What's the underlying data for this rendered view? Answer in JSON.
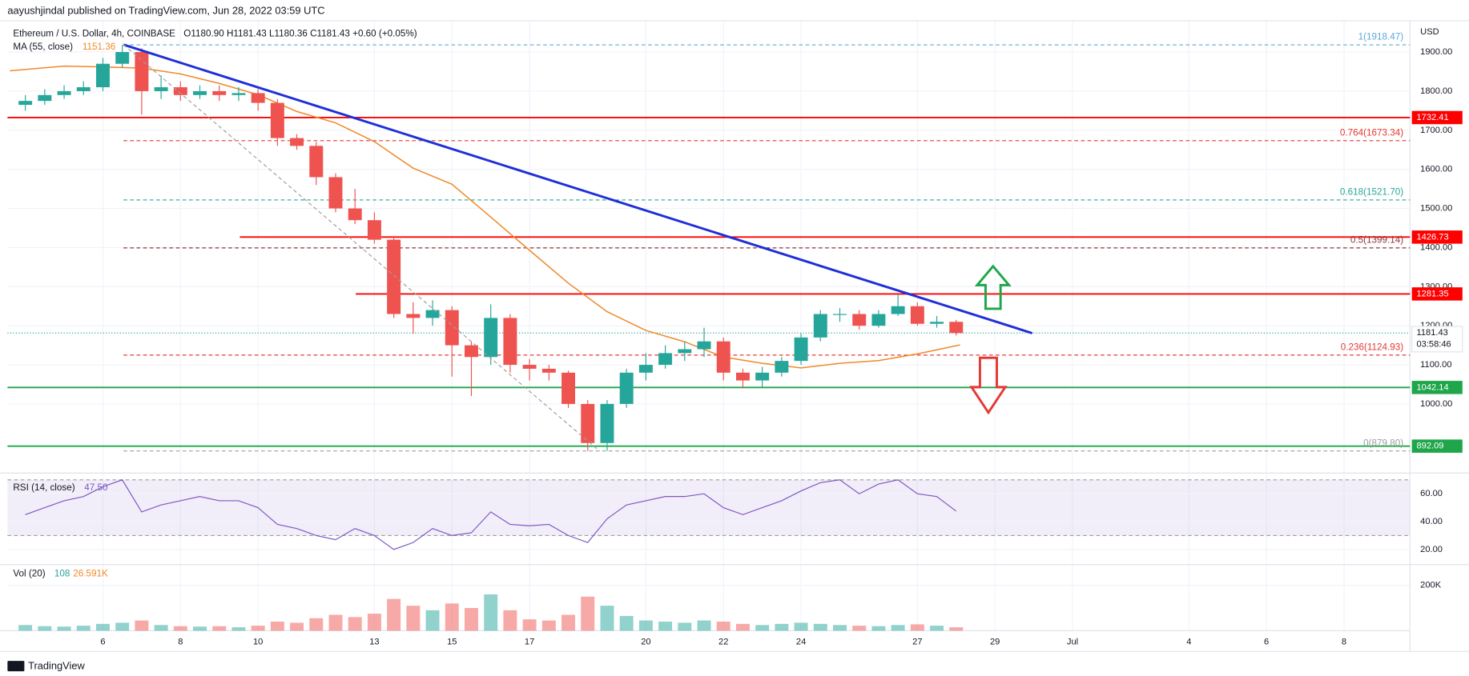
{
  "header": "aayushjindal published on TradingView.com, Jun 28, 2022 03:59 UTC",
  "footer": "TradingView",
  "chart_data": {
    "type": "candlestick",
    "symbol": "Ethereum / U.S. Dollar, 4h, COINBASE",
    "ohlc_text": "O1180.90 H1181.43 L1180.36 C1181.43 +0.60 (+0.05%)",
    "currency": "USD",
    "xlim": [
      3.54,
      39.7
    ],
    "xticks": [
      6,
      8,
      10,
      13,
      15,
      17,
      20,
      22,
      24,
      27,
      29,
      {
        "value": 31,
        "label": "Jul"
      },
      {
        "value": 34,
        "label": "4"
      },
      {
        "value": 36,
        "label": "6"
      },
      {
        "value": 38,
        "label": "8"
      }
    ],
    "ylim": [
      833,
      1980
    ],
    "yticks": [
      {
        "value": 1000,
        "label": "1000.00"
      },
      {
        "value": 1100,
        "label": "1100.00"
      },
      {
        "value": 1200,
        "label": "1200.00"
      },
      {
        "value": 1300,
        "label": "1300.00"
      },
      {
        "value": 1400,
        "label": "1400.00"
      },
      {
        "value": 1500,
        "label": "1500.00"
      },
      {
        "value": 1600,
        "label": "1600.00"
      },
      {
        "value": 1700,
        "label": "1700.00"
      },
      {
        "value": 1800,
        "label": "1800.00"
      },
      {
        "value": 1900,
        "label": "1900.00"
      }
    ],
    "grid": true,
    "up_color": "#26a69a",
    "down_color": "#ef5350",
    "candles": {
      "x": [
        4,
        4.5,
        5,
        5.5,
        6,
        6.5,
        7,
        7.5,
        8,
        8.5,
        9,
        9.5,
        10,
        10.5,
        11,
        11.5,
        12,
        12.5,
        13,
        13.5,
        14,
        14.5,
        15,
        15.5,
        16,
        16.5,
        17,
        17.5,
        18,
        18.5,
        19,
        19.5,
        20,
        20.5,
        21,
        21.5,
        22,
        22.5,
        23,
        23.5,
        24,
        24.5,
        25,
        25.5,
        26,
        26.5,
        27,
        27.5,
        28
      ],
      "open": [
        1765,
        1775,
        1790,
        1800,
        1810,
        1870,
        1900,
        1800,
        1810,
        1790,
        1800,
        1790,
        1795,
        1770,
        1680,
        1660,
        1580,
        1500,
        1470,
        1420,
        1230,
        1220,
        1240,
        1150,
        1120,
        1220,
        1100,
        1090,
        1080,
        1000,
        900,
        1000,
        1080,
        1100,
        1130,
        1140,
        1160,
        1080,
        1060,
        1080,
        1110,
        1170,
        1230,
        1230,
        1200,
        1230,
        1250,
        1205,
        1210
      ],
      "high": [
        1790,
        1805,
        1815,
        1825,
        1885,
        1918.47,
        1910,
        1840,
        1825,
        1815,
        1815,
        1810,
        1805,
        1780,
        1690,
        1670,
        1590,
        1550,
        1490,
        1430,
        1260,
        1265,
        1250,
        1160,
        1255,
        1230,
        1115,
        1100,
        1085,
        1010,
        1010,
        1090,
        1130,
        1150,
        1160,
        1195,
        1170,
        1090,
        1095,
        1120,
        1180,
        1240,
        1245,
        1240,
        1240,
        1280,
        1260,
        1225,
        1215
      ],
      "low": [
        1750,
        1765,
        1780,
        1790,
        1800,
        1860,
        1740,
        1780,
        1775,
        1780,
        1775,
        1775,
        1750,
        1660,
        1650,
        1560,
        1490,
        1460,
        1410,
        1220,
        1180,
        1200,
        1070,
        1020,
        1100,
        1080,
        1060,
        1060,
        990,
        880,
        879.8,
        990,
        1060,
        1090,
        1110,
        1120,
        1060,
        1040,
        1040,
        1070,
        1100,
        1160,
        1210,
        1190,
        1195,
        1225,
        1200,
        1195,
        1175
      ],
      "close": [
        1775,
        1790,
        1800,
        1810,
        1870,
        1900,
        1800,
        1810,
        1790,
        1800,
        1790,
        1795,
        1770,
        1680,
        1660,
        1580,
        1500,
        1470,
        1420,
        1230,
        1220,
        1240,
        1150,
        1120,
        1220,
        1100,
        1090,
        1080,
        1000,
        900,
        1000,
        1080,
        1100,
        1130,
        1140,
        1160,
        1080,
        1060,
        1080,
        1110,
        1170,
        1230,
        1230,
        1200,
        1230,
        1250,
        1205,
        1210,
        1181.43
      ]
    },
    "ma": {
      "name": "MA (55, close)",
      "last": "1151.36",
      "color": "#f0892a",
      "x": [
        3.6,
        5,
        6,
        7,
        8,
        9,
        10,
        11,
        12,
        13,
        14,
        15,
        16,
        17,
        18,
        19,
        20,
        21,
        22,
        23,
        24,
        25,
        26,
        27,
        28.1
      ],
      "values": [
        1852,
        1864,
        1862,
        1859,
        1844,
        1820,
        1791,
        1748,
        1719,
        1671,
        1603,
        1562,
        1478,
        1393,
        1309,
        1236,
        1188,
        1159,
        1120,
        1104,
        1092,
        1104,
        1111,
        1128,
        1151
      ]
    },
    "fib_levels": [
      {
        "label": "1(1918.47)",
        "value": 1918.47,
        "color": "#5fa8d8"
      },
      {
        "label": "0.764(1673.34)",
        "value": 1673.34,
        "color": "#e53935"
      },
      {
        "label": "0.618(1521.70)",
        "value": 1521.7,
        "color": "#26a69a"
      },
      {
        "label": "0.5(1399.14)",
        "value": 1399.14,
        "color": "#8d3a3a"
      },
      {
        "label": "0.236(1124.93)",
        "value": 1124.93,
        "color": "#e53935"
      },
      {
        "label": "0(879.80)",
        "value": 879.8,
        "color": "#9e9e9e"
      }
    ],
    "fib_from": 6.53,
    "levels": [
      {
        "value": 1732.41,
        "color": "#ff0000",
        "from": 3.54
      },
      {
        "value": 1426.73,
        "color": "#ff0000",
        "from": 9.53
      },
      {
        "value": 1281.35,
        "color": "#ff0000",
        "from": 12.52
      },
      {
        "value": 1042.14,
        "color": "#1fa64a",
        "from": 3.54
      },
      {
        "value": 892.09,
        "color": "#1fa64a",
        "from": 3.54
      }
    ],
    "last_price": 1181.43,
    "countdown": "03:58:46",
    "trendlines": [
      {
        "color": "#1f2fd6",
        "x": [
          6.53,
          29.96
        ],
        "values": [
          1919,
          1181
        ]
      },
      {
        "color": "#9e9e9e",
        "x": [
          6.53,
          18.8
        ],
        "values": [
          1919,
          879.8
        ]
      }
    ],
    "rsi": {
      "name": "RSI (14, close)",
      "last": "47.50",
      "color": "#7e57c2",
      "ylim": [
        9.8,
        72.2
      ],
      "band": [
        30,
        70
      ],
      "yticks": [
        {
          "value": 20,
          "label": "20.00"
        },
        {
          "value": 40,
          "label": "40.00"
        },
        {
          "value": 60,
          "label": "60.00"
        }
      ],
      "x": [
        4,
        4.5,
        5,
        5.5,
        6,
        6.5,
        7,
        7.5,
        8,
        8.5,
        9,
        9.5,
        10,
        10.5,
        11,
        11.5,
        12,
        12.5,
        13,
        13.5,
        14,
        14.5,
        15,
        15.5,
        16,
        16.5,
        17,
        17.5,
        18,
        18.5,
        19,
        19.5,
        20,
        20.5,
        21,
        21.5,
        22,
        22.5,
        23,
        23.5,
        24,
        24.5,
        25,
        25.5,
        26,
        26.5,
        27,
        27.5,
        28
      ],
      "values": [
        45,
        50,
        55,
        58,
        65,
        70,
        47,
        52,
        55,
        58,
        55,
        55,
        50,
        38,
        35,
        30,
        27,
        35,
        30,
        20,
        25,
        35,
        30,
        32,
        47,
        38,
        37,
        38,
        30,
        25,
        42,
        52,
        55,
        58,
        58,
        60,
        50,
        45,
        50,
        55,
        62,
        68,
        70,
        60,
        67,
        70,
        60,
        58,
        47.5
      ]
    },
    "volume": {
      "name": "Vol (20)",
      "last": "108",
      "ma_last": "26.591K",
      "ylim": [
        0,
        283000
      ],
      "yticks": [
        {
          "value": 200000,
          "label": "200K"
        }
      ],
      "values": [
        25000,
        20000,
        18000,
        22000,
        30000,
        35000,
        45000,
        25000,
        20000,
        18000,
        20000,
        15000,
        22000,
        40000,
        35000,
        55000,
        70000,
        60000,
        75000,
        140000,
        110000,
        90000,
        120000,
        100000,
        160000,
        90000,
        50000,
        45000,
        70000,
        150000,
        110000,
        65000,
        45000,
        40000,
        35000,
        45000,
        40000,
        30000,
        25000,
        30000,
        35000,
        30000,
        25000,
        22000,
        20000,
        25000,
        28000,
        22000,
        15000
      ]
    }
  }
}
